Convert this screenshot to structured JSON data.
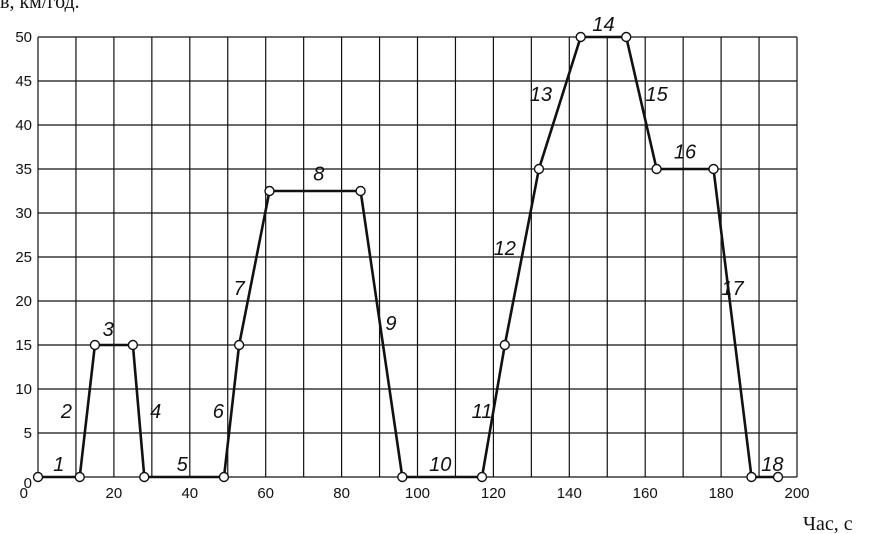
{
  "chart_data": {
    "type": "line",
    "ylabel": "в, км/год.",
    "xlabel": "Час, с",
    "xlim": [
      0,
      200
    ],
    "ylim": [
      0,
      50
    ],
    "x_ticks": [
      0,
      20,
      40,
      60,
      80,
      100,
      120,
      140,
      160,
      180,
      200
    ],
    "y_ticks": [
      0,
      5,
      10,
      15,
      20,
      25,
      30,
      35,
      40,
      45,
      50
    ],
    "x_grid_step": 10,
    "y_grid_step": 5,
    "grid": true,
    "series": [
      {
        "points": [
          [
            0,
            0
          ],
          [
            11,
            0
          ],
          [
            15,
            15
          ],
          [
            25,
            15
          ],
          [
            28,
            0
          ],
          [
            49,
            0
          ],
          [
            53,
            15
          ],
          [
            61,
            32.5
          ],
          [
            85,
            32.5
          ],
          [
            96,
            0
          ],
          [
            117,
            0
          ],
          [
            123,
            15
          ],
          [
            132,
            35
          ],
          [
            143,
            50
          ],
          [
            155,
            50
          ],
          [
            163,
            35
          ],
          [
            178,
            35
          ],
          [
            188,
            0
          ],
          [
            195,
            0
          ]
        ]
      }
    ],
    "annotations": [
      {
        "text": "1",
        "x": 5.5,
        "y": 1.5
      },
      {
        "text": "2",
        "x": 7.5,
        "y": 7.5
      },
      {
        "text": "3",
        "x": 18.5,
        "y": 16.8
      },
      {
        "text": "4",
        "x": 31,
        "y": 7.5
      },
      {
        "text": "5",
        "x": 38,
        "y": 1.5
      },
      {
        "text": "6",
        "x": 47.5,
        "y": 7.5
      },
      {
        "text": "7",
        "x": 53,
        "y": 21.5
      },
      {
        "text": "8",
        "x": 74,
        "y": 34.5
      },
      {
        "text": "9",
        "x": 93,
        "y": 17.5
      },
      {
        "text": "10",
        "x": 106,
        "y": 1.5
      },
      {
        "text": "11",
        "x": 117,
        "y": 7.5
      },
      {
        "text": "12",
        "x": 123,
        "y": 26
      },
      {
        "text": "13",
        "x": 132.5,
        "y": 43.5
      },
      {
        "text": "14",
        "x": 149,
        "y": 51.5
      },
      {
        "text": "15",
        "x": 163,
        "y": 43.5
      },
      {
        "text": "16",
        "x": 170.5,
        "y": 37
      },
      {
        "text": "17",
        "x": 183,
        "y": 21.5
      },
      {
        "text": "18",
        "x": 193.5,
        "y": 1.5
      }
    ]
  }
}
